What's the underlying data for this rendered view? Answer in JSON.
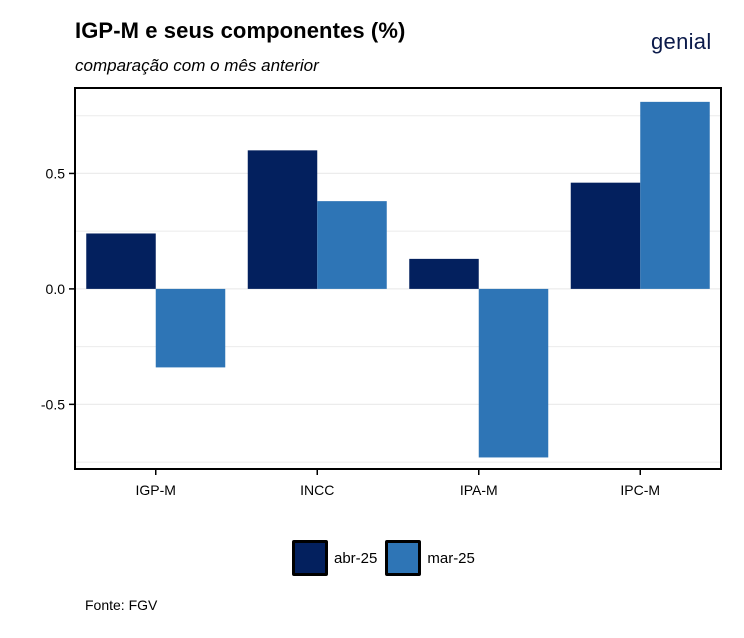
{
  "header": {
    "title": "IGP-M e seus componentes (%)",
    "subtitle": "comparação com o mês anterior",
    "logo_text": "genial"
  },
  "footer": {
    "source": "Fonte: FGV"
  },
  "colors": {
    "abr-25": "#03205e",
    "mar-25": "#2e75b6"
  },
  "chart_data": {
    "type": "bar",
    "title": "IGP-M e seus componentes (%)",
    "subtitle": "comparação com o mês anterior",
    "xlabel": "",
    "ylabel": "",
    "categories": [
      "IGP-M",
      "INCC",
      "IPA-M",
      "IPC-M"
    ],
    "series": [
      {
        "name": "abr-25",
        "values": [
          0.24,
          0.6,
          0.13,
          0.46
        ]
      },
      {
        "name": "mar-25",
        "values": [
          -0.34,
          0.38,
          -0.73,
          0.81
        ]
      }
    ],
    "ylim": [
      -0.78,
      0.87
    ],
    "yticks": [
      -0.5,
      0.0,
      0.5
    ],
    "ytick_labels": [
      "-0.5",
      "0.0",
      "0.5"
    ],
    "grid": true,
    "legend_position": "bottom"
  }
}
